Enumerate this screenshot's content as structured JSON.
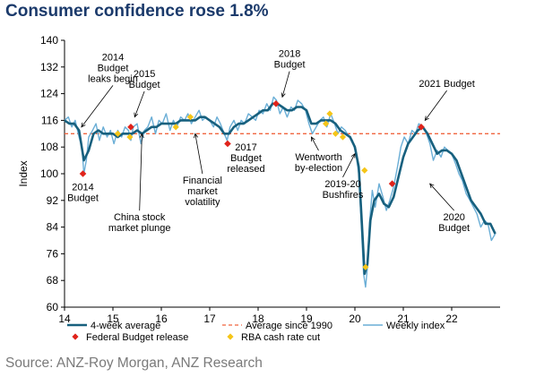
{
  "title": "Consumer confidence rose 1.8%",
  "source": "Source: ANZ-Roy Morgan, ANZ Research",
  "colors": {
    "weekly": "#6aaed6",
    "four_week": "#17607e",
    "average": "#f0653f",
    "budget": "#e0231a",
    "rba": "#f5c518"
  },
  "chart_data": {
    "type": "line",
    "title": "Consumer confidence rose 1.8%",
    "xlabel": "",
    "ylabel": "Index",
    "xlim": [
      14,
      23
    ],
    "ylim": [
      60,
      140
    ],
    "x_ticks": [
      14,
      15,
      16,
      17,
      18,
      19,
      20,
      21,
      22
    ],
    "x_tick_labels": [
      "14",
      "15",
      "16",
      "17",
      "18",
      "19",
      "20",
      "21",
      "22"
    ],
    "y_ticks": [
      60,
      68,
      76,
      84,
      92,
      100,
      108,
      116,
      124,
      132,
      140
    ],
    "grid": false,
    "legend": [
      "4-week average",
      "Average since 1990",
      "Weekly index",
      "Federal Budget release",
      "RBA cash rate cut"
    ],
    "series": [
      {
        "name": "Weekly index",
        "x": [
          14.0,
          14.08,
          14.15,
          14.22,
          14.3,
          14.36,
          14.4,
          14.45,
          14.5,
          14.58,
          14.65,
          14.72,
          14.8,
          14.88,
          14.95,
          15.02,
          15.1,
          15.18,
          15.25,
          15.32,
          15.37,
          15.42,
          15.5,
          15.58,
          15.65,
          15.72,
          15.8,
          15.88,
          15.95,
          16.02,
          16.1,
          16.18,
          16.25,
          16.32,
          16.4,
          16.48,
          16.55,
          16.62,
          16.7,
          16.78,
          16.85,
          16.92,
          17.0,
          17.08,
          17.15,
          17.22,
          17.3,
          17.36,
          17.42,
          17.5,
          17.58,
          17.65,
          17.72,
          17.8,
          17.88,
          17.95,
          18.02,
          18.1,
          18.18,
          18.25,
          18.32,
          18.38,
          18.45,
          18.52,
          18.6,
          18.68,
          18.75,
          18.82,
          18.9,
          18.98,
          19.05,
          19.12,
          19.2,
          19.28,
          19.35,
          19.42,
          19.5,
          19.58,
          19.65,
          19.72,
          19.8,
          19.88,
          19.95,
          20.02,
          20.08,
          20.14,
          20.18,
          20.22,
          20.26,
          20.3,
          20.36,
          20.42,
          20.5,
          20.58,
          20.65,
          20.72,
          20.8,
          20.88,
          20.95,
          21.02,
          21.1,
          21.18,
          21.25,
          21.32,
          21.4,
          21.48,
          21.55,
          21.62,
          21.7,
          21.78,
          21.85,
          21.92,
          22.0,
          22.08,
          22.15,
          22.22,
          22.3,
          22.38,
          22.45,
          22.52,
          22.6,
          22.68,
          22.75,
          22.82,
          22.9
        ],
        "values": [
          116,
          117,
          114,
          116,
          111,
          108,
          100,
          104,
          111,
          113,
          115,
          110,
          114,
          111,
          113,
          109,
          113,
          111,
          114,
          113,
          110,
          114,
          115,
          109,
          113,
          114,
          117,
          112,
          116,
          115,
          118,
          113,
          116,
          114,
          117,
          116,
          118,
          115,
          117,
          119,
          116,
          117,
          116,
          114,
          117,
          115,
          112,
          110,
          114,
          116,
          113,
          116,
          115,
          118,
          117,
          116,
          119,
          118,
          121,
          119,
          123,
          122,
          118,
          120,
          117,
          120,
          119,
          122,
          121,
          119,
          115,
          112,
          114,
          116,
          117,
          114,
          118,
          115,
          112,
          114,
          113,
          111,
          110,
          106,
          100,
          82,
          70,
          66,
          72,
          85,
          95,
          90,
          97,
          93,
          89,
          92,
          96,
          102,
          108,
          111,
          109,
          113,
          112,
          115,
          114,
          112,
          109,
          104,
          107,
          105,
          108,
          107,
          106,
          103,
          100,
          98,
          94,
          92,
          90,
          88,
          84,
          86,
          85,
          80,
          82
        ]
      },
      {
        "name": "4-week average",
        "x": [
          14.0,
          14.1,
          14.2,
          14.3,
          14.4,
          14.5,
          14.6,
          14.7,
          14.8,
          14.9,
          15.0,
          15.1,
          15.2,
          15.3,
          15.4,
          15.5,
          15.6,
          15.7,
          15.8,
          15.9,
          16.0,
          16.1,
          16.2,
          16.3,
          16.4,
          16.5,
          16.6,
          16.7,
          16.8,
          16.9,
          17.0,
          17.1,
          17.2,
          17.3,
          17.4,
          17.5,
          17.6,
          17.7,
          17.8,
          17.9,
          18.0,
          18.1,
          18.2,
          18.3,
          18.4,
          18.5,
          18.6,
          18.7,
          18.8,
          18.9,
          19.0,
          19.1,
          19.2,
          19.3,
          19.4,
          19.5,
          19.6,
          19.7,
          19.8,
          19.9,
          20.0,
          20.08,
          20.14,
          20.2,
          20.26,
          20.32,
          20.4,
          20.5,
          20.6,
          20.7,
          20.8,
          20.9,
          21.0,
          21.1,
          21.2,
          21.3,
          21.4,
          21.5,
          21.6,
          21.7,
          21.8,
          21.9,
          22.0,
          22.1,
          22.2,
          22.3,
          22.4,
          22.5,
          22.6,
          22.7,
          22.8,
          22.9
        ],
        "values": [
          116,
          115,
          115,
          113,
          104,
          107,
          112,
          113,
          112,
          112,
          112,
          111,
          112,
          112,
          112,
          113,
          112,
          113,
          114,
          114,
          115,
          115,
          115,
          115,
          116,
          116,
          116,
          116,
          117,
          117,
          116,
          115,
          114,
          112,
          112,
          114,
          115,
          115,
          116,
          117,
          118,
          119,
          119,
          121,
          121,
          120,
          119,
          119,
          120,
          120,
          119,
          115,
          115,
          116,
          116,
          116,
          115,
          113,
          112,
          111,
          108,
          102,
          86,
          70,
          73,
          86,
          92,
          94,
          91,
          90,
          93,
          99,
          105,
          109,
          111,
          113,
          114,
          112,
          109,
          106,
          107,
          107,
          106,
          104,
          100,
          96,
          92,
          90,
          88,
          85,
          85,
          82
        ]
      }
    ],
    "reference_line": {
      "name": "Average since 1990",
      "value": 112
    },
    "federal_budget_release": [
      {
        "x": 14.38,
        "y": 100
      },
      {
        "x": 15.37,
        "y": 114
      },
      {
        "x": 17.37,
        "y": 109
      },
      {
        "x": 18.37,
        "y": 121
      },
      {
        "x": 20.77,
        "y": 97
      },
      {
        "x": 21.37,
        "y": 114
      }
    ],
    "rba_cash_rate_cut": [
      {
        "x": 15.1,
        "y": 112
      },
      {
        "x": 15.35,
        "y": 111
      },
      {
        "x": 16.3,
        "y": 114
      },
      {
        "x": 16.6,
        "y": 117
      },
      {
        "x": 19.4,
        "y": 115
      },
      {
        "x": 19.48,
        "y": 118
      },
      {
        "x": 19.6,
        "y": 112
      },
      {
        "x": 19.75,
        "y": 111
      },
      {
        "x": 20.2,
        "y": 101
      },
      {
        "x": 20.22,
        "y": 72
      }
    ],
    "annotations": [
      {
        "lines": [
          "2014",
          "Budget",
          "leaks begin"
        ],
        "text_x": 15.0,
        "text_y": 134,
        "arrow_to": [
          14.35,
          114
        ]
      },
      {
        "lines": [
          "2015",
          "Budget"
        ],
        "text_x": 15.65,
        "text_y": 129,
        "arrow_to": [
          15.45,
          117
        ]
      },
      {
        "lines": [
          "2014",
          "Budget"
        ],
        "text_x": 14.38,
        "text_y": 95,
        "arrow_to": null
      },
      {
        "lines": [
          "China stock",
          "market plunge"
        ],
        "text_x": 15.55,
        "text_y": 86,
        "arrow_to": [
          15.6,
          112
        ]
      },
      {
        "lines": [
          "Financial",
          "market",
          "volatility"
        ],
        "text_x": 16.85,
        "text_y": 97,
        "arrow_to": [
          16.7,
          112
        ]
      },
      {
        "lines": [
          "2017",
          "Budget",
          "released"
        ],
        "text_x": 17.75,
        "text_y": 107,
        "arrow_to": null
      },
      {
        "lines": [
          "2018",
          "Budget"
        ],
        "text_x": 18.65,
        "text_y": 135,
        "arrow_to": [
          18.5,
          123
        ]
      },
      {
        "lines": [
          "Wentworth",
          "by-election"
        ],
        "text_x": 19.25,
        "text_y": 104,
        "arrow_to": [
          19.1,
          111
        ]
      },
      {
        "lines": [
          "2019-20",
          "Bushfires"
        ],
        "text_x": 19.75,
        "text_y": 96,
        "arrow_to": [
          20.0,
          106
        ]
      },
      {
        "lines": [
          "2021 Budget"
        ],
        "text_x": 21.9,
        "text_y": 126,
        "arrow_to": [
          21.45,
          116
        ]
      },
      {
        "lines": [
          "2020",
          "Budget"
        ],
        "text_x": 22.05,
        "text_y": 86,
        "arrow_to": [
          21.55,
          97
        ]
      }
    ]
  }
}
